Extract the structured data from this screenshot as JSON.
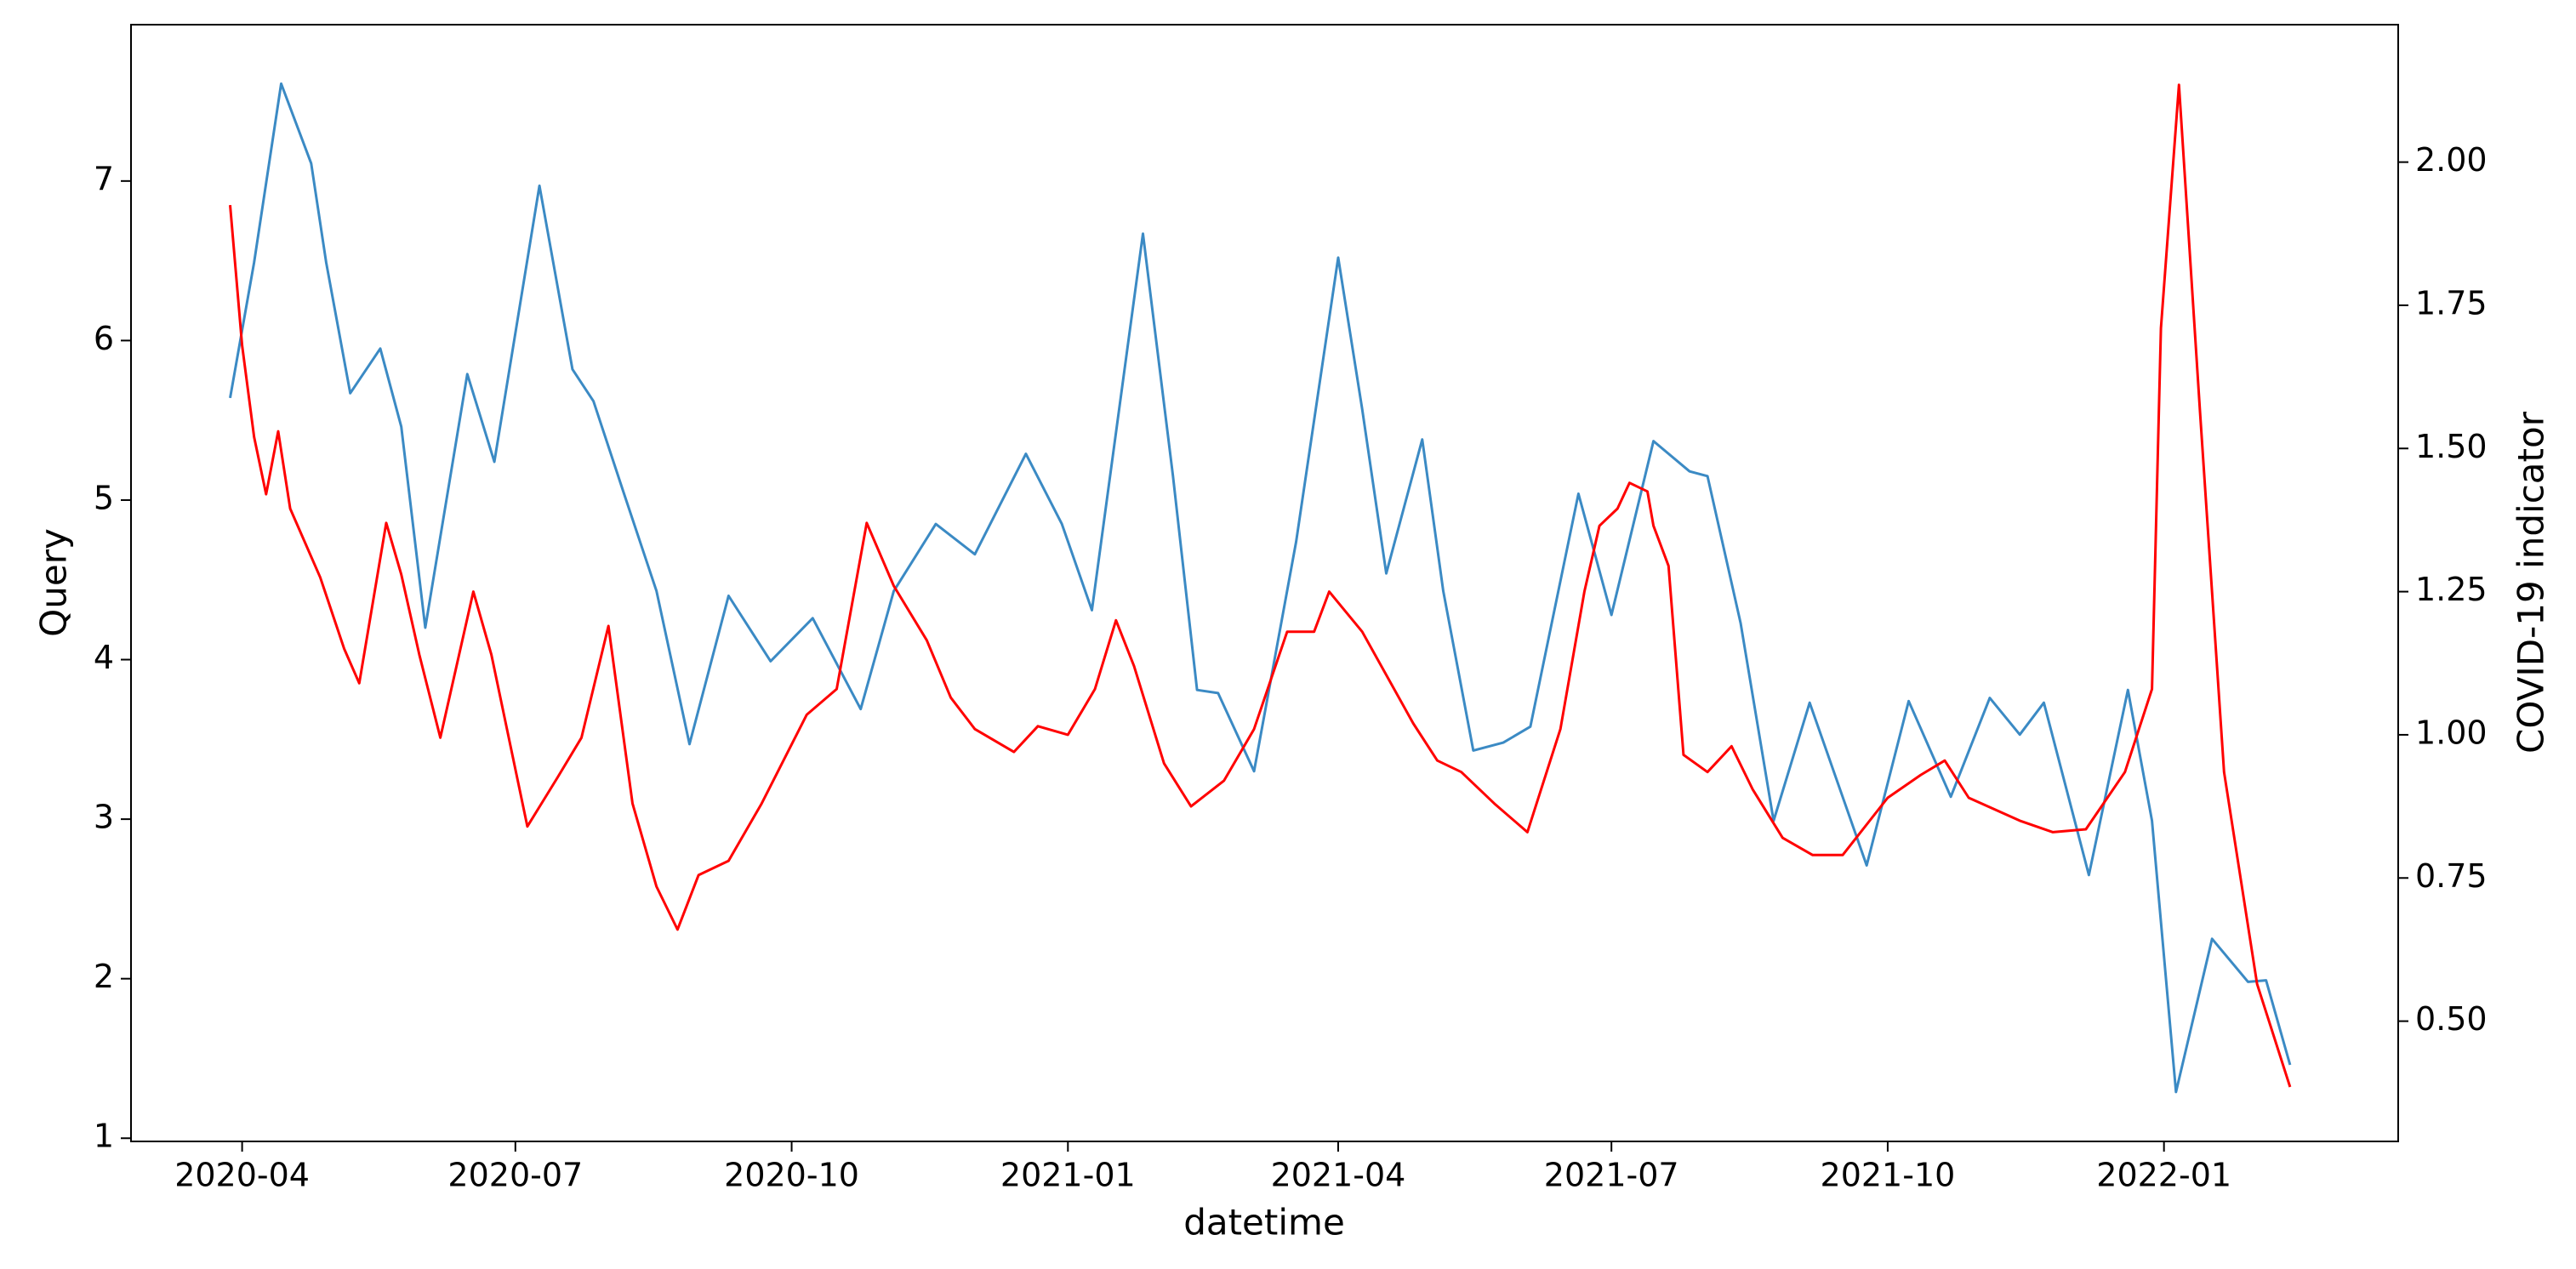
{
  "chart_data": {
    "type": "line",
    "xlabel": "datetime",
    "ylabel": "Query",
    "y2label": "COVID-19 indicator",
    "xlim": [
      "2020-02-24",
      "2022-03-20"
    ],
    "xticks": [
      "2020-04",
      "2020-07",
      "2020-10",
      "2021-01",
      "2021-04",
      "2021-07",
      "2021-10",
      "2022-01"
    ],
    "ylim": [
      0.98,
      7.98
    ],
    "yticks": [
      1,
      2,
      3,
      4,
      5,
      6,
      7
    ],
    "y2lim": [
      0.29,
      2.24
    ],
    "y2ticks": [
      {
        "value": 0.5,
        "label": "0.50"
      },
      {
        "value": 0.75,
        "label": "0.75"
      },
      {
        "value": 1,
        "label": "1.00"
      },
      {
        "value": 1.25,
        "label": "1.25"
      },
      {
        "value": 1.5,
        "label": "1.50"
      },
      {
        "value": 1.75,
        "label": "1.75"
      },
      {
        "value": 2,
        "label": "2.00"
      }
    ],
    "series": [
      {
        "color": "#3b8ac4",
        "axis": "y",
        "x": [
          "2020-03-28",
          "2020-04-05",
          "2020-04-14",
          "2020-04-24",
          "2020-04-29",
          "2020-05-07",
          "2020-05-17",
          "2020-05-24",
          "2020-06-01",
          "2020-06-15",
          "2020-06-24",
          "2020-07-09",
          "2020-07-20",
          "2020-07-27",
          "2020-08-06",
          "2020-08-17",
          "2020-08-28",
          "2020-09-10",
          "2020-09-24",
          "2020-10-08",
          "2020-10-24",
          "2020-11-04",
          "2020-11-18",
          "2020-12-01",
          "2020-12-18",
          "2020-12-30",
          "2021-01-09",
          "2021-01-26",
          "2021-02-05",
          "2021-02-13",
          "2021-02-20",
          "2021-03-04",
          "2021-03-18",
          "2021-04-01",
          "2021-04-09",
          "2021-04-17",
          "2021-04-29",
          "2021-05-06",
          "2021-05-16",
          "2021-05-26",
          "2021-06-04",
          "2021-06-20",
          "2021-07-01",
          "2021-07-15",
          "2021-07-27",
          "2021-08-02",
          "2021-08-13",
          "2021-08-24",
          "2021-09-05",
          "2021-09-24",
          "2021-10-08",
          "2021-10-22",
          "2021-11-04",
          "2021-11-14",
          "2021-11-22",
          "2021-12-07",
          "2021-12-20",
          "2021-12-28",
          "2022-01-05",
          "2022-01-17",
          "2022-01-29",
          "2022-02-04",
          "2022-02-12"
        ],
        "values": [
          5.64,
          6.49,
          7.61,
          7.11,
          6.49,
          5.67,
          5.95,
          5.46,
          4.2,
          5.79,
          5.24,
          6.97,
          5.82,
          5.62,
          5.05,
          4.43,
          3.47,
          4.4,
          3.99,
          4.26,
          3.69,
          4.43,
          4.85,
          4.66,
          5.29,
          4.85,
          4.31,
          6.67,
          5.15,
          3.81,
          3.79,
          3.3,
          4.74,
          6.52,
          5.57,
          4.54,
          5.38,
          4.43,
          3.43,
          3.48,
          3.58,
          5.04,
          4.28,
          5.37,
          5.18,
          5.15,
          4.23,
          2.99,
          3.73,
          2.71,
          3.74,
          3.14,
          3.76,
          3.53,
          3.73,
          2.65,
          3.81,
          2.99,
          1.29,
          2.25,
          1.98,
          1.99,
          1.46
        ]
      },
      {
        "color": "#ff0000",
        "axis": "y2",
        "x": [
          "2020-03-28",
          "2020-04-01",
          "2020-04-05",
          "2020-04-09",
          "2020-04-13",
          "2020-04-17",
          "2020-04-27",
          "2020-05-05",
          "2020-05-10",
          "2020-05-19",
          "2020-05-24",
          "2020-05-30",
          "2020-06-06",
          "2020-06-17",
          "2020-06-23",
          "2020-07-05",
          "2020-07-15",
          "2020-07-23",
          "2020-08-01",
          "2020-08-09",
          "2020-08-17",
          "2020-08-24",
          "2020-08-31",
          "2020-09-10",
          "2020-09-21",
          "2020-10-06",
          "2020-10-16",
          "2020-10-26",
          "2020-11-04",
          "2020-11-15",
          "2020-11-23",
          "2020-12-01",
          "2020-12-14",
          "2020-12-22",
          "2021-01-01",
          "2021-01-10",
          "2021-01-17",
          "2021-01-23",
          "2021-02-02",
          "2021-02-11",
          "2021-02-22",
          "2021-03-04",
          "2021-03-15",
          "2021-03-24",
          "2021-03-29",
          "2021-04-09",
          "2021-04-26",
          "2021-05-04",
          "2021-05-12",
          "2021-05-23",
          "2021-06-03",
          "2021-06-14",
          "2021-06-22",
          "2021-06-27",
          "2021-07-03",
          "2021-07-07",
          "2021-07-13",
          "2021-07-15",
          "2021-07-20",
          "2021-07-25",
          "2021-08-02",
          "2021-08-10",
          "2021-08-17",
          "2021-08-27",
          "2021-09-06",
          "2021-09-16",
          "2021-10-01",
          "2021-10-12",
          "2021-10-20",
          "2021-10-28",
          "2021-11-14",
          "2021-11-25",
          "2021-12-06",
          "2021-12-19",
          "2021-12-28",
          "2021-12-31",
          "2022-01-06",
          "2022-01-13",
          "2022-01-21",
          "2022-02-01",
          "2022-02-12"
        ],
        "values": [
          1.925,
          1.68,
          1.52,
          1.42,
          1.53,
          1.395,
          1.275,
          1.15,
          1.09,
          1.37,
          1.28,
          1.14,
          0.995,
          1.25,
          1.14,
          0.84,
          0.925,
          0.995,
          1.19,
          0.88,
          0.735,
          0.66,
          0.755,
          0.78,
          0.88,
          1.035,
          1.08,
          1.37,
          1.26,
          1.165,
          1.065,
          1.01,
          0.97,
          1.015,
          1.0,
          1.08,
          1.2,
          1.12,
          0.95,
          0.875,
          0.92,
          1.01,
          1.18,
          1.18,
          1.25,
          1.18,
          1.02,
          0.955,
          0.935,
          0.88,
          0.83,
          1.01,
          1.25,
          1.365,
          1.395,
          1.44,
          1.425,
          1.365,
          1.295,
          0.965,
          0.935,
          0.98,
          0.905,
          0.82,
          0.79,
          0.79,
          0.89,
          0.93,
          0.955,
          0.89,
          0.85,
          0.83,
          0.835,
          0.935,
          1.08,
          1.71,
          2.135,
          1.565,
          0.935,
          0.565,
          0.385
        ]
      }
    ]
  }
}
